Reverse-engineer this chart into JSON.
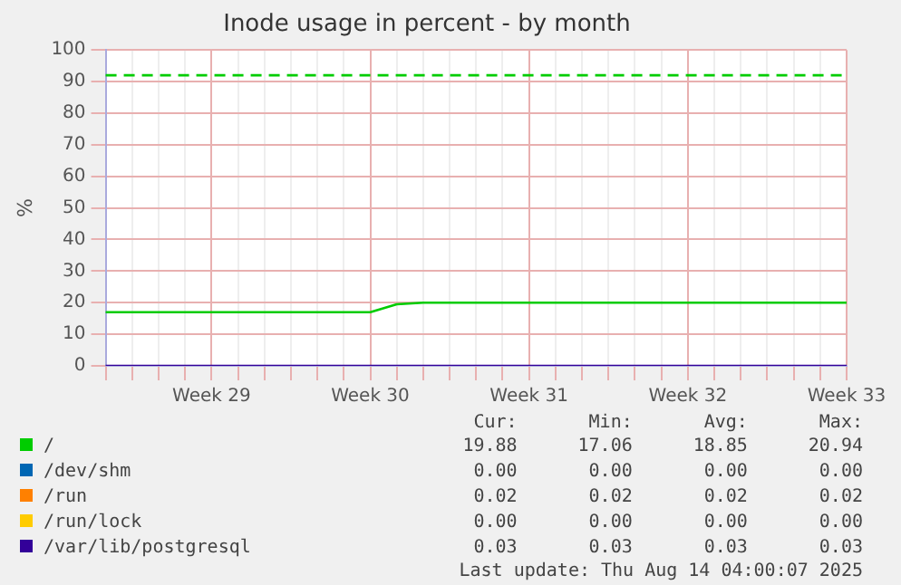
{
  "chart_data": {
    "type": "line",
    "title": "Inode usage in percent - by month",
    "ylabel": "%",
    "categories": [
      null,
      null,
      null,
      null,
      "Week 29",
      null,
      null,
      null,
      null,
      null,
      "Week 30",
      null,
      null,
      null,
      null,
      null,
      "Week 31",
      null,
      null,
      null,
      null,
      null,
      "Week 32",
      null,
      null,
      null,
      null,
      null,
      "Week 33"
    ],
    "ylim": [
      0,
      100
    ],
    "yticks": [
      0,
      10,
      20,
      30,
      40,
      50,
      60,
      70,
      80,
      90,
      100
    ],
    "grid": true,
    "legend": "bottom",
    "marker": "none",
    "line_style": "solid",
    "series": [
      {
        "name": "/",
        "color": "#00cc00",
        "values": [
          17,
          17,
          17,
          17,
          17,
          17,
          17,
          17,
          17,
          17,
          17,
          19.5,
          20,
          20,
          20,
          20,
          20,
          20,
          20,
          20,
          20,
          20,
          20,
          20,
          20,
          20,
          20,
          20,
          20
        ]
      },
      {
        "name": "/dev/shm",
        "color": "#0066b3",
        "values": [
          null,
          null,
          null,
          null,
          null,
          null,
          null,
          null,
          null,
          null,
          null,
          null,
          null,
          null,
          null,
          null,
          null,
          null,
          null,
          null,
          null,
          null,
          null,
          null,
          null,
          null,
          null,
          null,
          null
        ]
      },
      {
        "name": "/run",
        "color": "#ff8000",
        "values": [
          null,
          null,
          null,
          null,
          null,
          null,
          null,
          null,
          null,
          null,
          null,
          null,
          null,
          null,
          null,
          null,
          null,
          null,
          null,
          null,
          null,
          null,
          null,
          null,
          null,
          null,
          null,
          null,
          null
        ]
      },
      {
        "name": "/run/lock",
        "color": "#ffcc00",
        "values": [
          null,
          null,
          null,
          null,
          null,
          null,
          null,
          null,
          null,
          null,
          null,
          null,
          null,
          null,
          null,
          null,
          null,
          null,
          null,
          null,
          null,
          null,
          null,
          null,
          null,
          null,
          null,
          null,
          null
        ]
      },
      {
        "name": "/var/lib/postgresql",
        "color": "#330099",
        "values": [
          0,
          0,
          0,
          0,
          0,
          0,
          0,
          0,
          0,
          0,
          0,
          0,
          0,
          0,
          0,
          0,
          0,
          0,
          0,
          0,
          0,
          0,
          0,
          0,
          0,
          0,
          0,
          0,
          0
        ]
      }
    ],
    "ref_lines": [
      {
        "axis": "y",
        "value": 92,
        "color": "#00cc00",
        "line_style": "dashed"
      }
    ],
    "annotations": [
      "Cur:",
      "Min:",
      "Avg:",
      "Max:",
      "19.88",
      "17.06",
      "18.85",
      "20.94",
      "0.00",
      "0.00",
      "0.00",
      "0.00",
      "0.02",
      "0.02",
      "0.02",
      "0.02",
      "0.00",
      "0.00",
      "0.00",
      "0.00",
      "0.03",
      "0.03",
      "0.03",
      "0.03",
      "Last update: Thu Aug 14 04:00:07 2025"
    ]
  }
}
